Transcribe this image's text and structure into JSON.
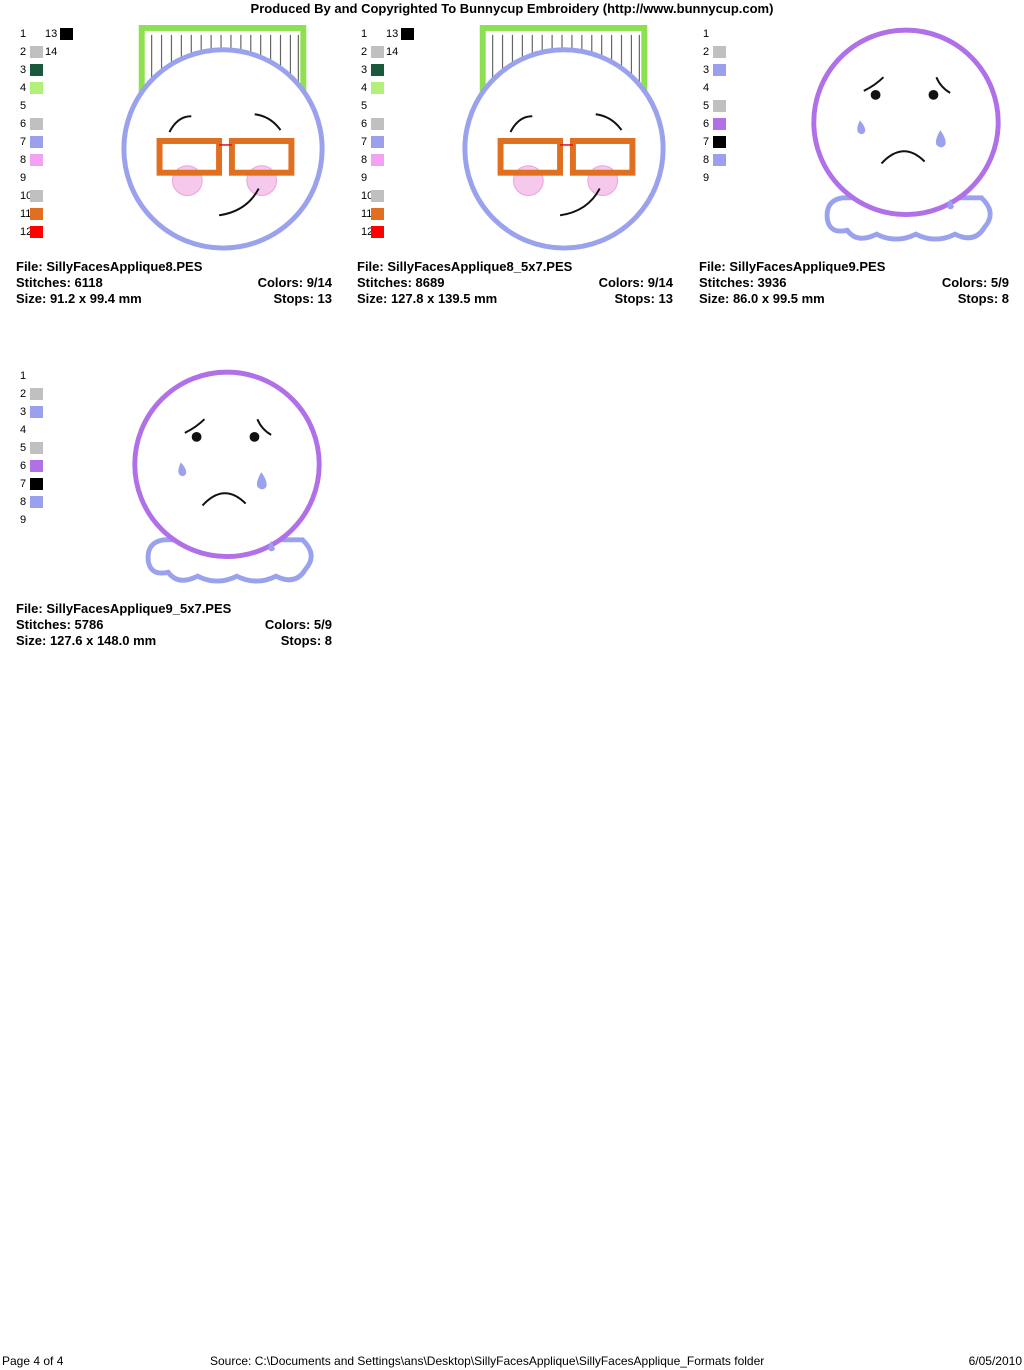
{
  "header": {
    "title": "Produced By and Copyrighted To Bunnycup Embroidery (http://www.bunnycup.com)"
  },
  "designs": [
    {
      "file": "File: SillyFacesApplique8.PES",
      "stitches": "Stitches: 6118",
      "colors": "Colors: 9/14",
      "size": "Size: 91.2 x 99.4 mm",
      "stops": "Stops: 13",
      "legend": [
        {
          "n": "1",
          "c": null,
          "n2": "13",
          "c2": "#000000"
        },
        {
          "n": "2",
          "c": "#c0c0c0",
          "n2": "14",
          "c2": null
        },
        {
          "n": "3",
          "c": "#1a5a3c"
        },
        {
          "n": "4",
          "c": "#b2f07a"
        },
        {
          "n": "5",
          "c": null
        },
        {
          "n": "6",
          "c": "#c0c0c0"
        },
        {
          "n": "7",
          "c": "#9aa0ee"
        },
        {
          "n": "8",
          "c": "#f2a2f0"
        },
        {
          "n": "9",
          "c": null
        },
        {
          "n": "10",
          "c": "#c0c0c0"
        },
        {
          "n": "11",
          "c": "#e07020"
        },
        {
          "n": "12",
          "c": "#ff0000"
        }
      ]
    },
    {
      "file": "File: SillyFacesApplique8_5x7.PES",
      "stitches": "Stitches: 8689",
      "colors": "Colors: 9/14",
      "size": "Size: 127.8 x 139.5 mm",
      "stops": "Stops: 13",
      "legend": [
        {
          "n": "1",
          "c": null,
          "n2": "13",
          "c2": "#000000"
        },
        {
          "n": "2",
          "c": "#c0c0c0",
          "n2": "14",
          "c2": null
        },
        {
          "n": "3",
          "c": "#1a5a3c"
        },
        {
          "n": "4",
          "c": "#b2f07a"
        },
        {
          "n": "5",
          "c": null
        },
        {
          "n": "6",
          "c": "#c0c0c0"
        },
        {
          "n": "7",
          "c": "#9aa0ee"
        },
        {
          "n": "8",
          "c": "#f2a2f0"
        },
        {
          "n": "9",
          "c": null
        },
        {
          "n": "10",
          "c": "#c0c0c0"
        },
        {
          "n": "11",
          "c": "#e07020"
        },
        {
          "n": "12",
          "c": "#ff0000"
        }
      ]
    },
    {
      "file": "File: SillyFacesApplique9.PES",
      "stitches": "Stitches: 3936",
      "colors": "Colors: 5/9",
      "size": "Size: 86.0 x 99.5 mm",
      "stops": "Stops: 8",
      "legend": [
        {
          "n": "1",
          "c": null
        },
        {
          "n": "2",
          "c": "#c0c0c0"
        },
        {
          "n": "3",
          "c": "#9aa0ee"
        },
        {
          "n": "4",
          "c": null
        },
        {
          "n": "5",
          "c": "#c0c0c0"
        },
        {
          "n": "6",
          "c": "#b070e8"
        },
        {
          "n": "7",
          "c": "#000000"
        },
        {
          "n": "8",
          "c": "#9aa0ee"
        },
        {
          "n": "9",
          "c": null
        }
      ]
    },
    {
      "file": "File: SillyFacesApplique9_5x7.PES",
      "stitches": "Stitches: 5786",
      "colors": "Colors: 5/9",
      "size": "Size: 127.6 x 148.0 mm",
      "stops": "Stops: 8",
      "legend": [
        {
          "n": "1",
          "c": null
        },
        {
          "n": "2",
          "c": "#c0c0c0"
        },
        {
          "n": "3",
          "c": "#9aa0ee"
        },
        {
          "n": "4",
          "c": null
        },
        {
          "n": "5",
          "c": "#c0c0c0"
        },
        {
          "n": "6",
          "c": "#b070e8"
        },
        {
          "n": "7",
          "c": "#000000"
        },
        {
          "n": "8",
          "c": "#9aa0ee"
        },
        {
          "n": "9",
          "c": null
        }
      ]
    }
  ],
  "footer": {
    "page": "Page 4 of 4",
    "source": "Source: C:\\Documents and Settings\\ans\\Desktop\\SillyFacesApplique\\SillyFacesApplique_Formats folder",
    "date": "6/05/2010"
  }
}
